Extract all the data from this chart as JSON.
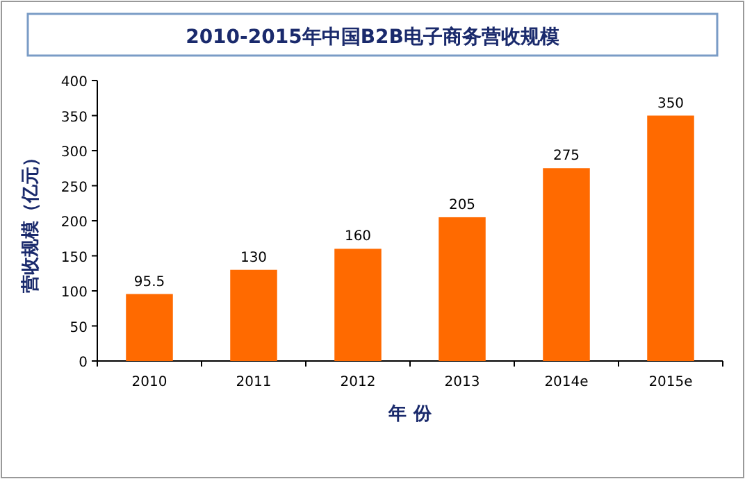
{
  "chart_data": {
    "type": "bar",
    "title": "2010-2015年中国B2B电子商务营收规模",
    "xlabel": "年 份",
    "ylabel": "营收规模（亿元）",
    "categories": [
      "2010",
      "2011",
      "2012",
      "2013",
      "2014e",
      "2015e"
    ],
    "values": [
      95.5,
      130,
      160,
      205,
      275,
      350
    ],
    "color": "#ff6a00",
    "ylim": [
      0,
      400
    ],
    "yticks": [
      0,
      50,
      100,
      150,
      200,
      250,
      300,
      350,
      400
    ],
    "data_labels": true
  }
}
